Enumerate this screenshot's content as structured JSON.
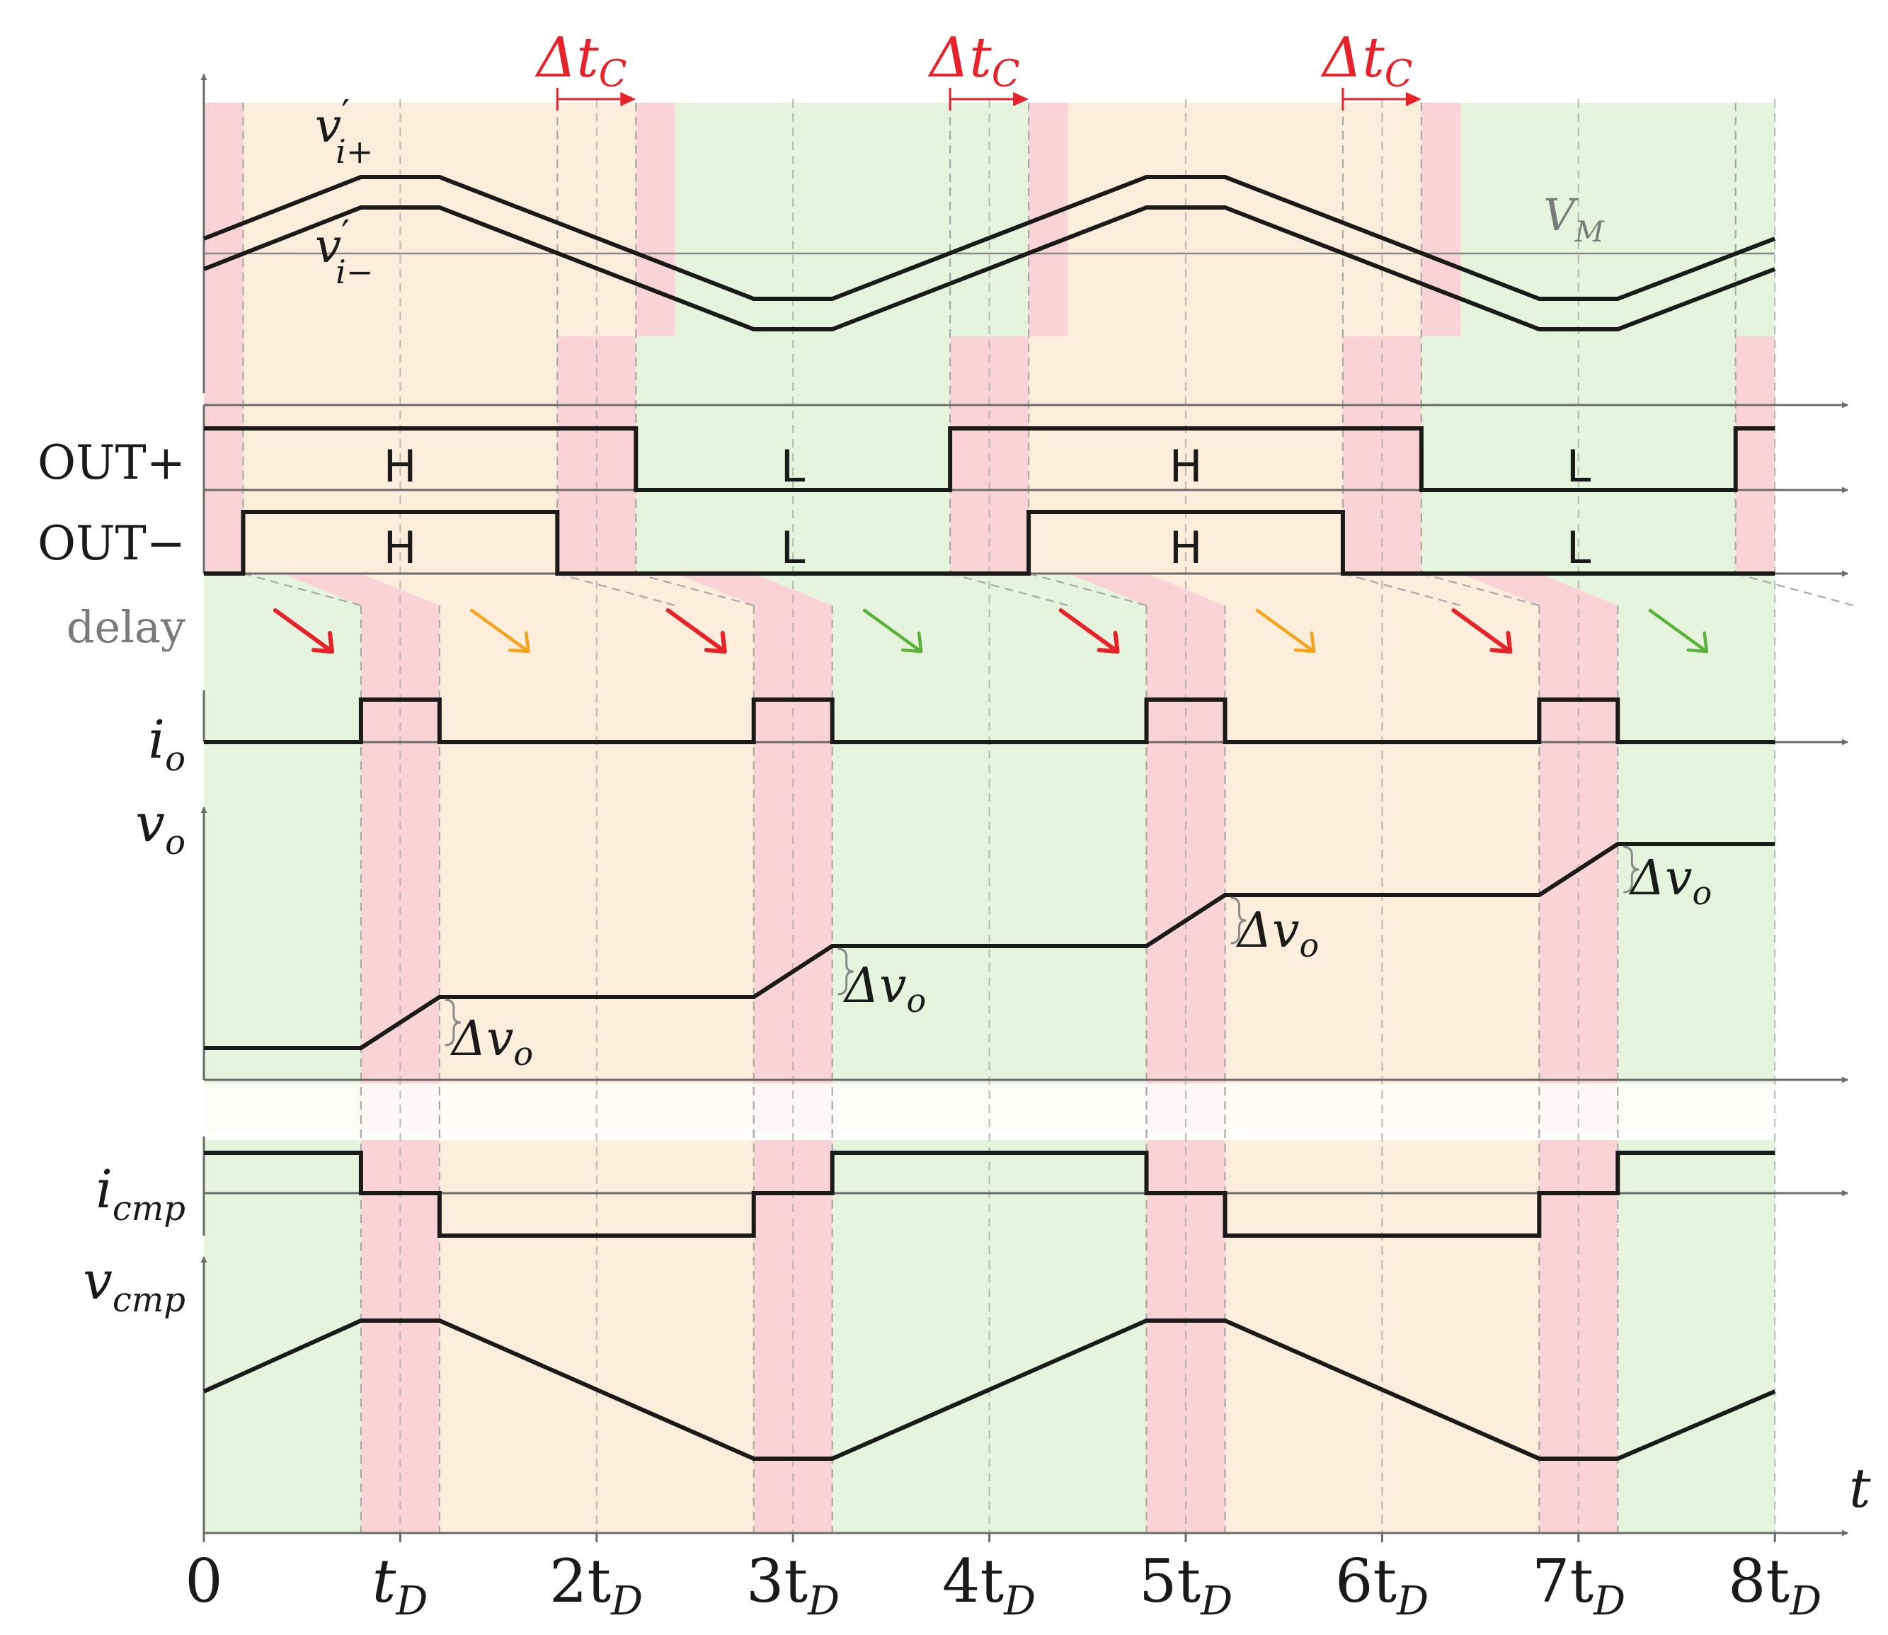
{
  "signals": {
    "vi_plus": {
      "sym": "v",
      "prime": "′",
      "sub": "i+"
    },
    "vi_minus": {
      "sym": "v",
      "prime": "′",
      "sub": "i−"
    },
    "VM": {
      "sym": "V",
      "sub": "M"
    },
    "out_plus": "OUT+",
    "out_minus": "OUT−",
    "delay": "delay",
    "io": {
      "sym": "i",
      "sub": "o"
    },
    "vo": {
      "sym": "v",
      "sub": "o"
    },
    "icmp": {
      "sym": "i",
      "sub": "cmp"
    },
    "vcmp": {
      "sym": "v",
      "sub": "cmp"
    }
  },
  "state_labels": {
    "high": "H",
    "low": "L"
  },
  "delta_tc": {
    "sym": "Δt",
    "sub": "C"
  },
  "delta_vo": {
    "sym": "Δv",
    "sub": "o"
  },
  "time_axis": {
    "label": "t",
    "ticks": [
      {
        "pre": "0",
        "sub": ""
      },
      {
        "pre": "t",
        "sub": "D"
      },
      {
        "pre": "2t",
        "sub": "D"
      },
      {
        "pre": "3t",
        "sub": "D"
      },
      {
        "pre": "4t",
        "sub": "D"
      },
      {
        "pre": "5t",
        "sub": "D"
      },
      {
        "pre": "6t",
        "sub": "D"
      },
      {
        "pre": "7t",
        "sub": "D"
      },
      {
        "pre": "8t",
        "sub": "D"
      }
    ]
  },
  "colors": {
    "red_region": "#f9d3d8",
    "orange_region": "#fdeedc",
    "green_region": "#e6f3dd",
    "waveform": "#1a1a1a",
    "axis": "#6b6b6b",
    "accent_red": "#e8222a",
    "accent_orange": "#f6a21a",
    "accent_green": "#5cb33b"
  },
  "delay_arrow_colors": [
    "red",
    "orange",
    "red",
    "green",
    "red",
    "orange",
    "red",
    "green"
  ]
}
